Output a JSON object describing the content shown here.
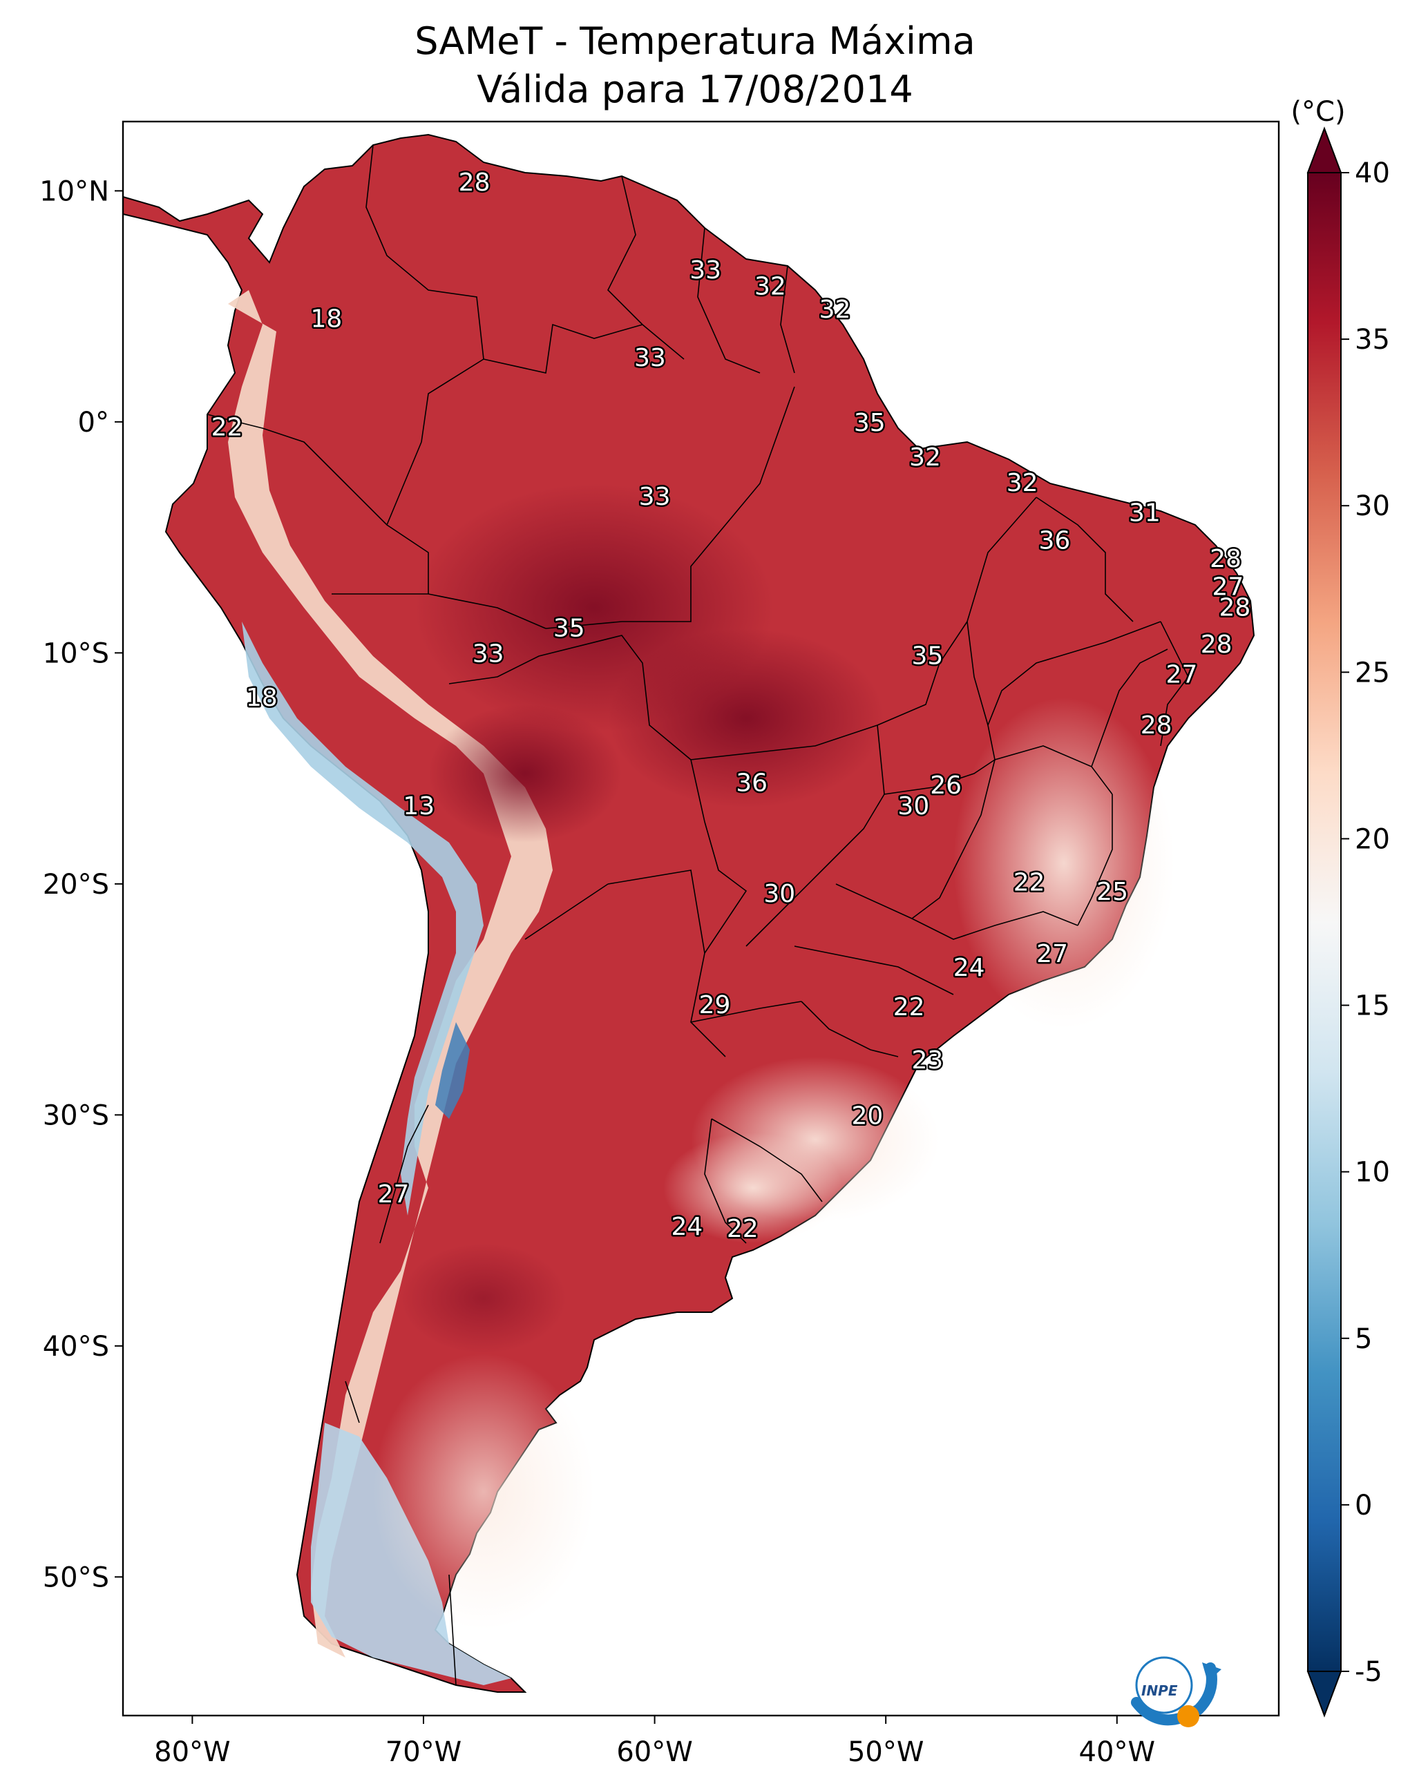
{
  "title": {
    "line1": "SAMeT - Temperatura Máxima",
    "line2": "Válida para 17/08/2014"
  },
  "map": {
    "lon_labels": [
      "80°W",
      "70°W",
      "60°W",
      "50°W",
      "40°W"
    ],
    "lon_values": [
      -80,
      -70,
      -60,
      -50,
      -40
    ],
    "lat_labels": [
      "10°N",
      "0°",
      "10°S",
      "20°S",
      "30°S",
      "40°S",
      "50°S"
    ],
    "lat_values": [
      10,
      0,
      -10,
      -20,
      -30,
      -40,
      -50
    ],
    "extent": {
      "lon_min": -83,
      "lon_max": -33,
      "lat_min": -56,
      "lat_max": 13
    }
  },
  "colorbar": {
    "unit": "(°C)",
    "tick_labels": [
      "40",
      "35",
      "30",
      "25",
      "20",
      "15",
      "10",
      "5",
      "0",
      "-5"
    ],
    "tick_values": [
      40,
      35,
      30,
      25,
      20,
      15,
      10,
      5,
      0,
      -5
    ],
    "range": [
      -5,
      40
    ],
    "colors": [
      "#053061",
      "#2166ac",
      "#4393c3",
      "#92c5de",
      "#d1e5f0",
      "#f7f7f7",
      "#fddbc7",
      "#f4a582",
      "#d6604d",
      "#b2182b",
      "#67001f"
    ]
  },
  "labels": [
    {
      "text": "28",
      "lon": -67.8,
      "lat": 10.4
    },
    {
      "text": "33",
      "lon": -57.8,
      "lat": 6.6
    },
    {
      "text": "32",
      "lon": -55.0,
      "lat": 5.9
    },
    {
      "text": "32",
      "lon": -52.2,
      "lat": 4.9
    },
    {
      "text": "18",
      "lon": -74.2,
      "lat": 4.5
    },
    {
      "text": "33",
      "lon": -60.2,
      "lat": 2.8
    },
    {
      "text": "22",
      "lon": -78.5,
      "lat": -0.2
    },
    {
      "text": "35",
      "lon": -50.7,
      "lat": 0.0
    },
    {
      "text": "32",
      "lon": -48.3,
      "lat": -1.5
    },
    {
      "text": "32",
      "lon": -44.1,
      "lat": -2.6
    },
    {
      "text": "33",
      "lon": -60.0,
      "lat": -3.2
    },
    {
      "text": "31",
      "lon": -38.8,
      "lat": -3.9
    },
    {
      "text": "36",
      "lon": -42.7,
      "lat": -5.1
    },
    {
      "text": "28",
      "lon": -35.3,
      "lat": -5.9
    },
    {
      "text": "27",
      "lon": -35.2,
      "lat": -7.1
    },
    {
      "text": "28",
      "lon": -34.9,
      "lat": -8.0
    },
    {
      "text": "35",
      "lon": -63.7,
      "lat": -8.9
    },
    {
      "text": "33",
      "lon": -67.2,
      "lat": -10.0
    },
    {
      "text": "35",
      "lon": -48.2,
      "lat": -10.1
    },
    {
      "text": "28",
      "lon": -35.7,
      "lat": -9.6
    },
    {
      "text": "27",
      "lon": -37.2,
      "lat": -10.9
    },
    {
      "text": "18",
      "lon": -77.0,
      "lat": -11.9
    },
    {
      "text": "28",
      "lon": -38.3,
      "lat": -13.1
    },
    {
      "text": "36",
      "lon": -55.8,
      "lat": -15.6
    },
    {
      "text": "26",
      "lon": -47.4,
      "lat": -15.7
    },
    {
      "text": "30",
      "lon": -48.8,
      "lat": -16.6
    },
    {
      "text": "13",
      "lon": -70.2,
      "lat": -16.6
    },
    {
      "text": "22",
      "lon": -43.8,
      "lat": -19.9
    },
    {
      "text": "25",
      "lon": -40.2,
      "lat": -20.3
    },
    {
      "text": "30",
      "lon": -54.6,
      "lat": -20.4
    },
    {
      "text": "27",
      "lon": -42.8,
      "lat": -23.0
    },
    {
      "text": "24",
      "lon": -46.4,
      "lat": -23.6
    },
    {
      "text": "29",
      "lon": -57.4,
      "lat": -25.2
    },
    {
      "text": "22",
      "lon": -49.0,
      "lat": -25.3
    },
    {
      "text": "23",
      "lon": -48.2,
      "lat": -27.6
    },
    {
      "text": "20",
      "lon": -50.8,
      "lat": -30.0
    },
    {
      "text": "27",
      "lon": -71.3,
      "lat": -33.4
    },
    {
      "text": "24",
      "lon": -58.6,
      "lat": -34.8
    },
    {
      "text": "22",
      "lon": -56.2,
      "lat": -34.9
    }
  ],
  "logo": {
    "text": "INPE"
  }
}
